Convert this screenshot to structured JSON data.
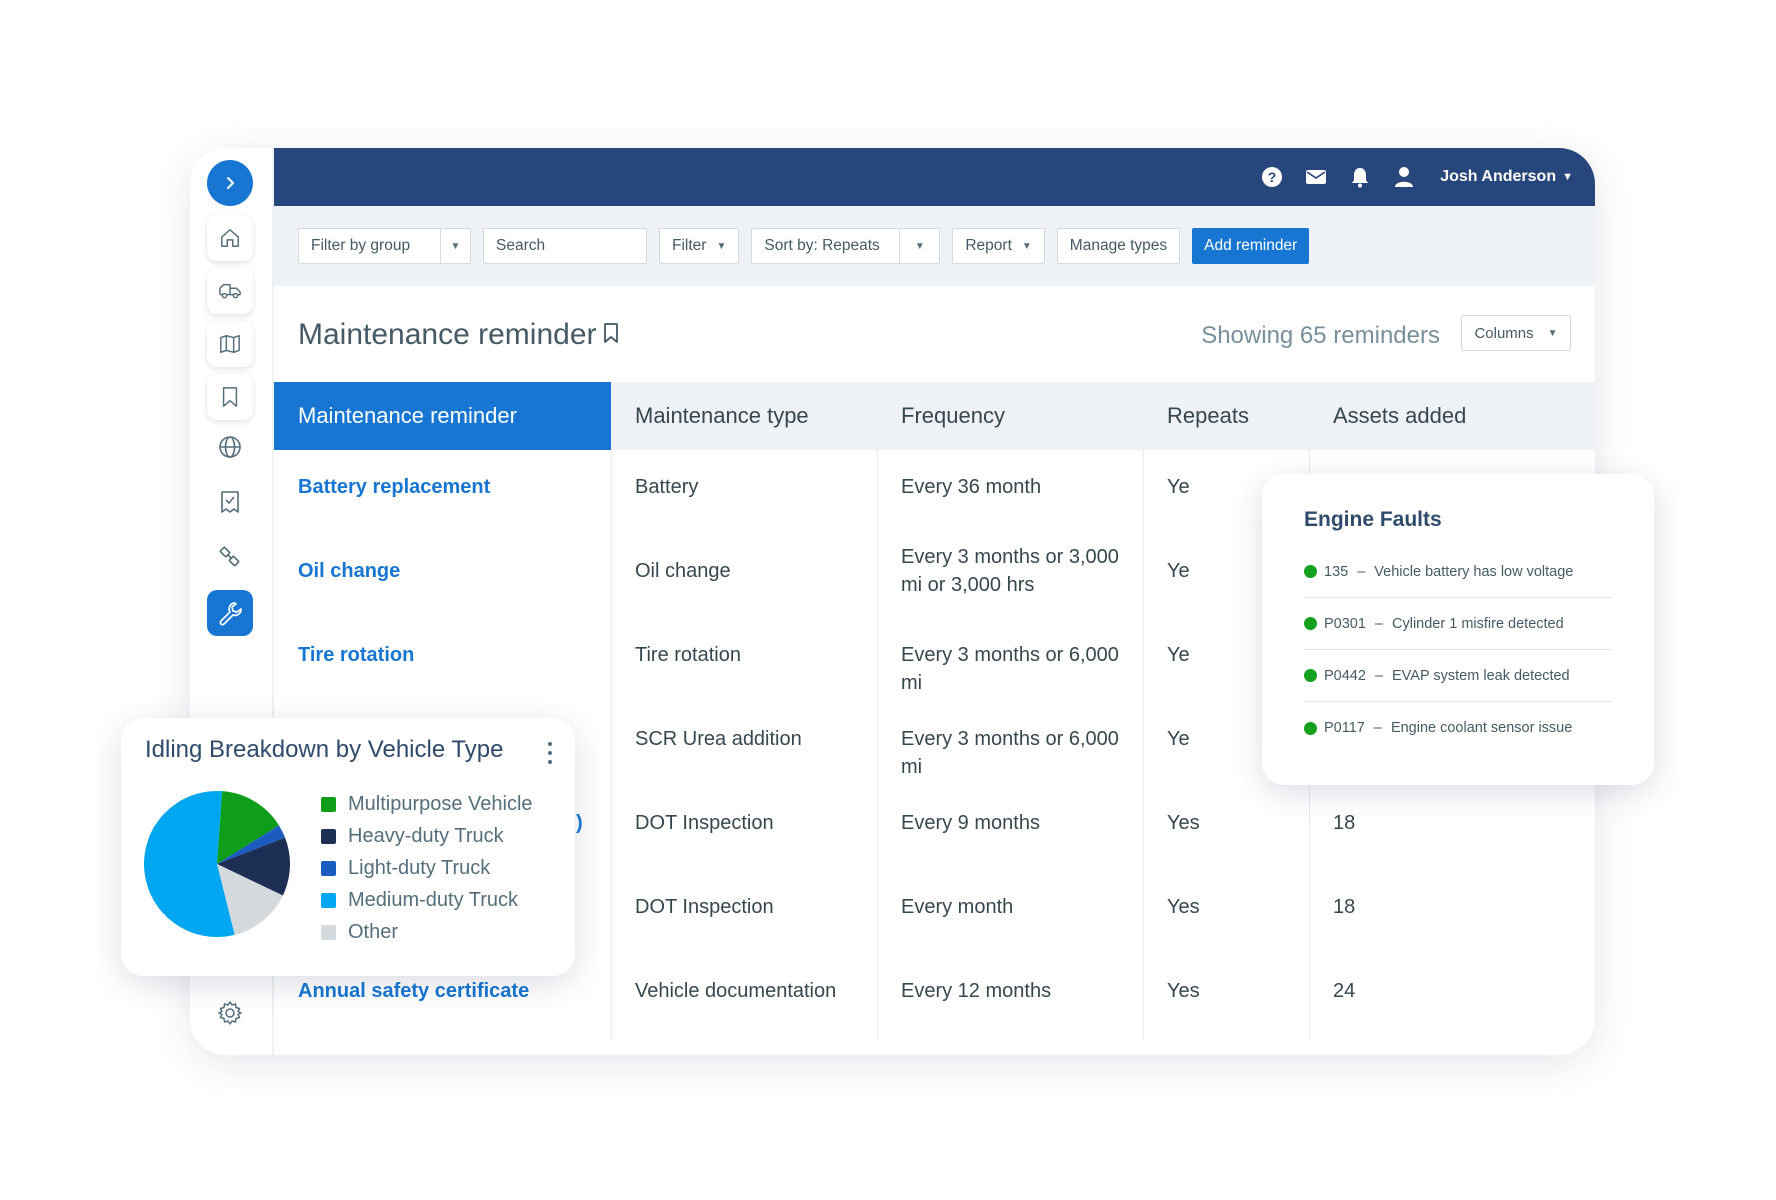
{
  "header": {
    "user_name": "Josh Anderson",
    "icons": [
      "help-icon",
      "mail-icon",
      "bell-icon",
      "user-icon"
    ]
  },
  "sidebar": {
    "items": [
      "home-icon",
      "truck-icon",
      "map-icon",
      "bookmark-icon",
      "globe-icon",
      "checklist-icon",
      "wrench-icon",
      "settings-icon"
    ],
    "active": "maintenance",
    "accent": "#1676d2"
  },
  "toolbar": {
    "filter_group": "Filter by group",
    "search_placeholder": "Search",
    "filter": "Filter",
    "sort": "Sort by: Repeats",
    "report": "Report",
    "manage_types": "Manage types",
    "add_reminder": "Add reminder"
  },
  "page": {
    "title": "Maintenance reminder",
    "showing": "Showing 65 reminders",
    "columns_button": "Columns"
  },
  "table": {
    "headers": [
      "Maintenance reminder",
      "Maintenance type",
      "Frequency",
      "Repeats",
      "Assets added"
    ],
    "rows": [
      {
        "reminder": "Battery replacement",
        "type": "Battery",
        "frequency": "Every 36 month",
        "repeats": "Ye",
        "assets": ""
      },
      {
        "reminder": "Oil change",
        "type": "Oil change",
        "frequency": "Every 3 months or 3,000 mi or 3,000 hrs",
        "repeats": "Ye",
        "assets": ""
      },
      {
        "reminder": "Tire rotation",
        "type": "Tire rotation",
        "frequency": "Every 3 months or 6,000 mi",
        "repeats": "Ye",
        "assets": ""
      },
      {
        "reminder": "",
        "type": "SCR Urea addition",
        "frequency": "Every 3 months or 6,000 mi",
        "repeats": "Ye",
        "assets": ""
      },
      {
        "reminder": ")",
        "type": "DOT Inspection",
        "frequency": "Every 9 months",
        "repeats": "Yes",
        "assets": "18"
      },
      {
        "reminder": "",
        "type": "DOT Inspection",
        "frequency": "Every month",
        "repeats": "Yes",
        "assets": "18"
      },
      {
        "reminder": "Annual safety certificate",
        "type": "Vehicle documentation",
        "frequency": "Every 12 months",
        "repeats": "Yes",
        "assets": "24"
      }
    ]
  },
  "engine_faults": {
    "title": "Engine Faults",
    "status_color": "#15a11d",
    "items": [
      {
        "code": "135",
        "text": "Vehicle battery has low voltage"
      },
      {
        "code": "P0301",
        "text": "Cylinder 1 misfire detected"
      },
      {
        "code": "P0442",
        "text": "EVAP system leak detected"
      },
      {
        "code": "P0117",
        "text": "Engine coolant sensor issue"
      }
    ]
  },
  "idling": {
    "title": "Idling Breakdown by Vehicle Type",
    "menu_icon": "kebab-menu-icon"
  },
  "chart_data": {
    "type": "pie",
    "title": "Idling Breakdown by Vehicle Type",
    "categories": [
      "Multipurpose Vehicle",
      "Heavy-duty Truck",
      "Light-duty Truck",
      "Medium-duty Truck",
      "Other"
    ],
    "values": [
      15,
      13,
      3,
      55,
      14
    ],
    "colors": [
      "#0e9e1a",
      "#1e2f55",
      "#1a5cc0",
      "#00a7f0",
      "#d4d9de"
    ],
    "legend": "right"
  }
}
